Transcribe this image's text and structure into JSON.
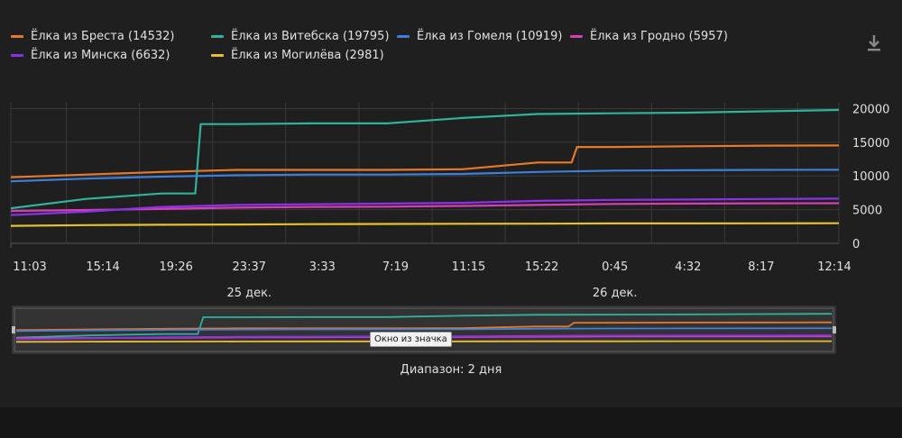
{
  "colors": {
    "background": "#1f1f1f",
    "grid": "#3a3a3a",
    "text": "#e0e0e0",
    "navigator_bg": "#2a2a2a"
  },
  "toolbar": {
    "download_icon": "download-icon"
  },
  "navigator": {
    "tooltip": "Окно из значка",
    "range_label": "Диапазон: 2 дня"
  },
  "chart_data": {
    "type": "line",
    "x": [
      "11:03",
      "15:14",
      "19:26",
      "23:37",
      "3:33",
      "7:19",
      "11:15",
      "15:22",
      "0:45",
      "4:32",
      "8:17",
      "12:14"
    ],
    "date_labels": [
      {
        "label": "25 дек.",
        "at": "23:37"
      },
      {
        "label": "26 дек.",
        "at": "0:45"
      }
    ],
    "yticks": [
      0,
      5000,
      10000,
      15000,
      20000
    ],
    "ylim": [
      0,
      21000
    ],
    "grid": true,
    "legend_position": "top-left",
    "series": [
      {
        "name": "Ёлка из Бреста (14532)",
        "color": "#e8792b",
        "values": [
          9800,
          10200,
          10600,
          10900,
          10900,
          10900,
          11000,
          12000,
          14300,
          14400,
          14500,
          14532
        ]
      },
      {
        "name": "Ёлка из Витебска (19795)",
        "color": "#2fb39a",
        "values": [
          5200,
          6600,
          7400,
          17700,
          17800,
          17800,
          18600,
          19200,
          19300,
          19400,
          19600,
          19795
        ]
      },
      {
        "name": "Ёлка из Гомеля (10919)",
        "color": "#3d7fd9",
        "values": [
          9200,
          9600,
          9900,
          10100,
          10200,
          10200,
          10300,
          10600,
          10800,
          10850,
          10900,
          10919
        ]
      },
      {
        "name": "Ёлка из Гродно (5957)",
        "color": "#d63fb3",
        "values": [
          4800,
          4950,
          5100,
          5300,
          5400,
          5450,
          5550,
          5700,
          5850,
          5900,
          5940,
          5957
        ]
      },
      {
        "name": "Ёлка из Минска (6632)",
        "color": "#8a32e8",
        "values": [
          4200,
          4700,
          5400,
          5700,
          5800,
          5900,
          6000,
          6300,
          6450,
          6500,
          6580,
          6632
        ]
      },
      {
        "name": "Ёлка из Могилёва (2981)",
        "color": "#e8c02f",
        "values": [
          2600,
          2700,
          2750,
          2800,
          2850,
          2880,
          2900,
          2920,
          2950,
          2960,
          2975,
          2981
        ]
      }
    ]
  }
}
